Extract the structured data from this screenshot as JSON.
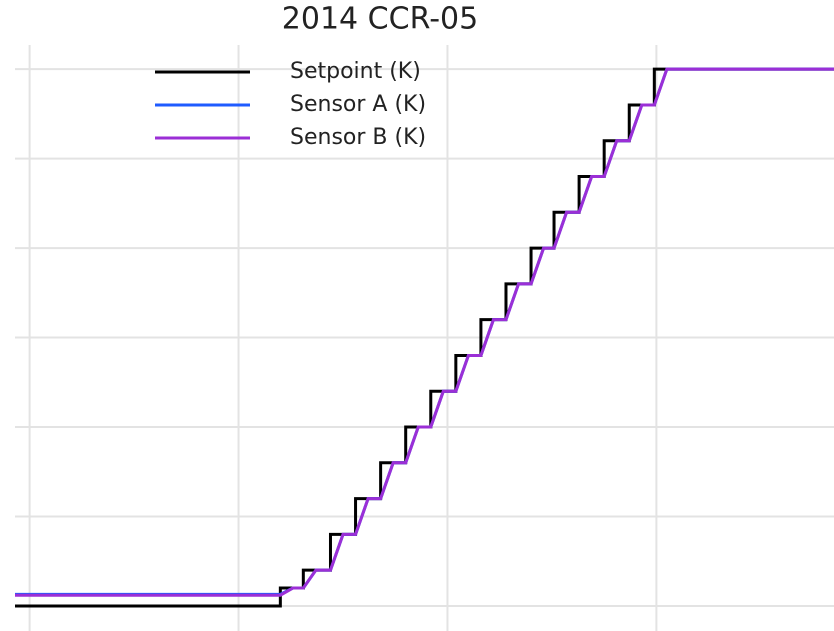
{
  "chart_data": {
    "type": "line",
    "title": "2014 CCR-05",
    "xlim": [
      -0.7,
      38.5
    ],
    "ylim": [
      -0.28,
      6.27
    ],
    "xticks": [
      0,
      10,
      20,
      30
    ],
    "yticks": [
      0,
      1,
      2,
      3,
      4,
      5,
      6
    ],
    "grid": true,
    "legend": "upper left",
    "series": [
      {
        "name": "Setpoint (K)",
        "color": "#000000",
        "x": [
          -0.7,
          12.0,
          12.0,
          13.1,
          13.1,
          14.4,
          14.4,
          15.6,
          15.6,
          16.8,
          16.8,
          18.0,
          18.0,
          19.2,
          19.2,
          20.4,
          20.4,
          21.6,
          21.6,
          22.8,
          22.8,
          24.0,
          24.0,
          25.1,
          25.1,
          26.3,
          26.3,
          27.5,
          27.5,
          28.7,
          28.7,
          29.9,
          29.9,
          38.5
        ],
        "values": [
          0,
          0,
          0.2,
          0.2,
          0.4,
          0.4,
          0.8,
          0.8,
          1.2,
          1.2,
          1.6,
          1.6,
          2.0,
          2.0,
          2.4,
          2.4,
          2.8,
          2.8,
          3.2,
          3.2,
          3.6,
          3.6,
          4.0,
          4.0,
          4.4,
          4.4,
          4.8,
          4.8,
          5.2,
          5.2,
          5.6,
          5.6,
          6.0,
          6.0
        ]
      },
      {
        "name": "Sensor A (K)",
        "color": "#1f5bff",
        "x": [
          -0.7,
          12.0,
          12.6,
          13.1,
          13.7,
          14.4,
          15.0,
          15.6,
          16.2,
          16.8,
          17.4,
          18.0,
          18.6,
          19.2,
          19.8,
          20.4,
          21.0,
          21.6,
          22.2,
          22.8,
          23.4,
          24.0,
          24.6,
          25.1,
          25.7,
          26.3,
          26.9,
          27.5,
          28.1,
          28.7,
          29.3,
          29.9,
          30.5,
          38.5
        ],
        "values": [
          0.13,
          0.13,
          0.2,
          0.2,
          0.4,
          0.4,
          0.8,
          0.8,
          1.2,
          1.2,
          1.6,
          1.6,
          2.0,
          2.0,
          2.4,
          2.4,
          2.8,
          2.8,
          3.2,
          3.2,
          3.6,
          3.6,
          4.0,
          4.0,
          4.4,
          4.4,
          4.8,
          4.8,
          5.2,
          5.2,
          5.6,
          5.6,
          6.0,
          6.0
        ]
      },
      {
        "name": "Sensor B (K)",
        "color": "#9b2fd6",
        "x": [
          -0.7,
          12.0,
          12.6,
          13.1,
          13.7,
          14.4,
          15.0,
          15.6,
          16.2,
          16.8,
          17.4,
          18.0,
          18.6,
          19.2,
          19.8,
          20.4,
          21.0,
          21.6,
          22.2,
          22.8,
          23.4,
          24.0,
          24.6,
          25.1,
          25.7,
          26.3,
          26.9,
          27.5,
          28.1,
          28.7,
          29.3,
          29.9,
          30.5,
          38.5
        ],
        "values": [
          0.12,
          0.12,
          0.2,
          0.2,
          0.4,
          0.4,
          0.8,
          0.8,
          1.2,
          1.2,
          1.6,
          1.6,
          2.0,
          2.0,
          2.4,
          2.4,
          2.8,
          2.8,
          3.2,
          3.2,
          3.6,
          3.6,
          4.0,
          4.0,
          4.4,
          4.4,
          4.8,
          4.8,
          5.2,
          5.2,
          5.6,
          5.6,
          6.0,
          6.0
        ]
      }
    ]
  }
}
